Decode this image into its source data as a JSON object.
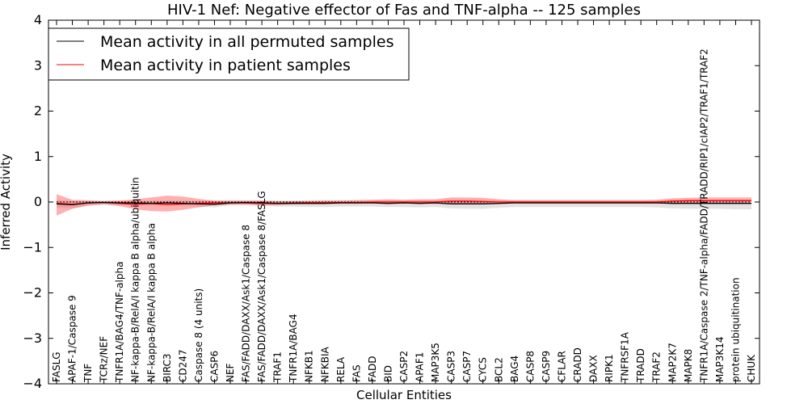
{
  "chart_data": {
    "type": "line",
    "title": "HIV-1 Nef: Negative effector of Fas and TNF-alpha -- 125 samples",
    "xlabel": "Cellular Entities",
    "ylabel": "Inferred Activity",
    "ylim": [
      -4,
      4
    ],
    "yticks": [
      "4",
      "3",
      "2",
      "1",
      "0",
      "−1",
      "−2",
      "−3",
      "−4"
    ],
    "grid": false,
    "legend_position": "top-left",
    "categories": [
      "FASLG",
      "APAF-1/Caspase 9",
      "TNF",
      "TCRz/NEF",
      "TNFR1A/BAG4/TNF-alpha",
      "NF-kappa-B/RelA/I kappa B alpha/ubiquitin",
      "NF-kappa-B/RelA/I kappa B alpha",
      "BIRC3",
      "CD247",
      "Caspase 8 (4 units)",
      "CASP6",
      "NEF",
      "FAS/FADD/DAXX/Ask1/Caspase 8",
      "FAS/FADD/DAXX/Ask1/Caspase 8/FASLG",
      "TRAF1",
      "TNFR1A/BAG4",
      "NFKB1",
      "NFKBIA",
      "RELA",
      "FAS",
      "FADD",
      "BID",
      "CASP2",
      "APAF1",
      "MAP3K5",
      "CASP3",
      "CASP7",
      "CYCS",
      "BCL2",
      "BAG4",
      "CASP8",
      "CASP9",
      "CFLAR",
      "CRADD",
      "DAXX",
      "RIPK1",
      "TNFRSF1A",
      "TRADD",
      "TRAF2",
      "MAP2K7",
      "MAPK8",
      "TNFR1A/Caspase 2/TNF-alpha/FADD/TRADD/RIP1/cIAP2/TRAF1/TRAF2",
      "MAP3K14",
      "protein ubiquitination",
      "CHUK"
    ],
    "series": [
      {
        "name": "Mean activity in all permuted samples",
        "color": "#000000",
        "values": [
          -0.04,
          -0.06,
          -0.02,
          -0.01,
          -0.02,
          -0.02,
          -0.03,
          -0.02,
          -0.03,
          -0.04,
          -0.05,
          -0.02,
          -0.01,
          -0.02,
          -0.03,
          -0.03,
          -0.03,
          -0.03,
          -0.02,
          -0.02,
          -0.02,
          -0.03,
          -0.02,
          -0.03,
          -0.02,
          -0.04,
          -0.04,
          -0.04,
          -0.03,
          -0.02,
          -0.02,
          -0.02,
          -0.02,
          -0.02,
          -0.02,
          -0.02,
          -0.02,
          -0.02,
          -0.02,
          -0.03,
          -0.03,
          -0.03,
          -0.03,
          -0.03,
          -0.03
        ],
        "band_upper": [
          0.05,
          0.02,
          0.02,
          0.03,
          0.03,
          0.03,
          0.03,
          0.03,
          0.03,
          0.03,
          0.03,
          0.03,
          0.03,
          0.03,
          0.03,
          0.03,
          0.04,
          0.04,
          0.04,
          0.04,
          0.04,
          0.04,
          0.04,
          0.04,
          0.04,
          0.04,
          0.04,
          0.04,
          0.04,
          0.04,
          0.04,
          0.04,
          0.04,
          0.04,
          0.04,
          0.04,
          0.04,
          0.04,
          0.04,
          0.05,
          0.05,
          0.05,
          0.05,
          0.05,
          0.05
        ],
        "band_lower": [
          -0.13,
          -0.14,
          -0.08,
          -0.06,
          -0.07,
          -0.07,
          -0.08,
          -0.07,
          -0.08,
          -0.1,
          -0.12,
          -0.07,
          -0.06,
          -0.07,
          -0.1,
          -0.1,
          -0.11,
          -0.11,
          -0.1,
          -0.1,
          -0.1,
          -0.11,
          -0.11,
          -0.12,
          -0.11,
          -0.14,
          -0.15,
          -0.15,
          -0.13,
          -0.11,
          -0.11,
          -0.11,
          -0.11,
          -0.11,
          -0.11,
          -0.11,
          -0.11,
          -0.11,
          -0.12,
          -0.14,
          -0.15,
          -0.15,
          -0.15,
          -0.16,
          -0.16
        ]
      },
      {
        "name": "Mean activity in patient samples",
        "color": "#ff0000",
        "values": [
          -0.03,
          -0.05,
          -0.02,
          -0.01,
          -0.03,
          -0.05,
          -0.03,
          -0.06,
          -0.04,
          -0.03,
          -0.02,
          -0.02,
          -0.02,
          -0.03,
          -0.03,
          -0.02,
          -0.01,
          -0.01,
          -0.01,
          -0.01,
          0.0,
          0.0,
          0.0,
          0.0,
          0.0,
          0.02,
          0.02,
          0.01,
          0.0,
          0.0,
          0.0,
          0.0,
          0.0,
          0.0,
          0.0,
          0.0,
          0.0,
          0.0,
          0.0,
          0.02,
          0.03,
          0.03,
          0.03,
          0.03,
          0.03
        ],
        "band_upper": [
          0.17,
          0.05,
          0.04,
          0.02,
          0.03,
          0.06,
          0.1,
          0.14,
          0.12,
          0.07,
          0.03,
          0.03,
          0.03,
          0.03,
          0.02,
          0.02,
          0.02,
          0.03,
          0.03,
          0.04,
          0.05,
          0.06,
          0.05,
          0.06,
          0.06,
          0.1,
          0.1,
          0.09,
          0.06,
          0.04,
          0.04,
          0.04,
          0.04,
          0.04,
          0.04,
          0.04,
          0.04,
          0.04,
          0.05,
          0.08,
          0.09,
          0.1,
          0.1,
          0.1,
          0.1
        ],
        "band_lower": [
          -0.3,
          -0.15,
          -0.08,
          -0.05,
          -0.09,
          -0.16,
          -0.2,
          -0.21,
          -0.17,
          -0.12,
          -0.07,
          -0.06,
          -0.06,
          -0.08,
          -0.07,
          -0.05,
          -0.04,
          -0.04,
          -0.04,
          -0.04,
          -0.03,
          -0.02,
          -0.03,
          -0.03,
          -0.04,
          -0.03,
          -0.03,
          -0.03,
          -0.03,
          -0.02,
          -0.03,
          -0.03,
          -0.03,
          -0.03,
          -0.03,
          -0.03,
          -0.03,
          -0.03,
          -0.03,
          -0.02,
          -0.02,
          -0.01,
          -0.01,
          -0.01,
          -0.01
        ]
      }
    ]
  }
}
